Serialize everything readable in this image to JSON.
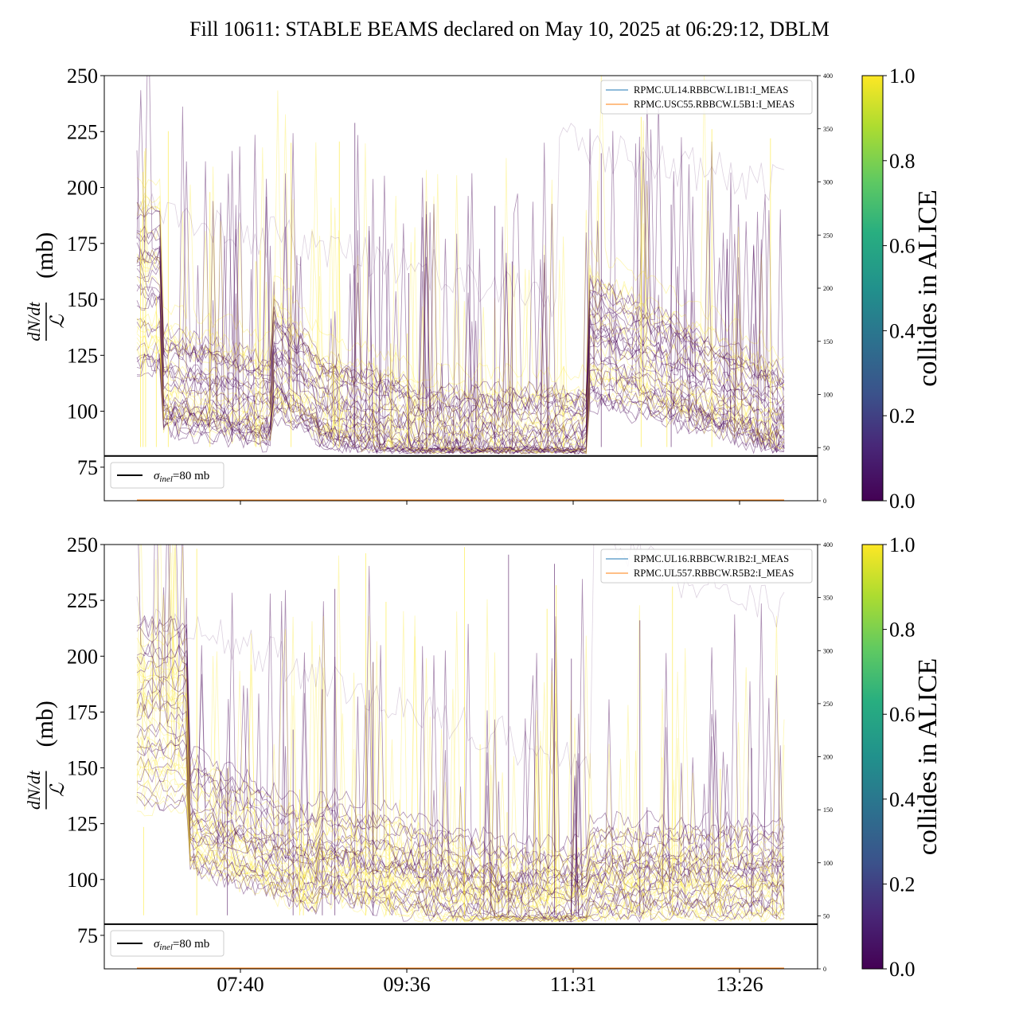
{
  "chart_data": {
    "title": "Fill 10611: STABLE BEAMS declared on May 10, 2025 at 06:29:12, DBLM",
    "type": "line",
    "x_tick_labels": [
      "07:40",
      "09:36",
      "11:31",
      "13:26"
    ],
    "colors": {
      "viridis_start": "#440154",
      "viridis_mid": "#21918c",
      "viridis_end": "#fde725",
      "legend_blue": "#1f77b4",
      "legend_orange": "#ff7f0e",
      "threshold_line": "#000000"
    },
    "panels": [
      {
        "ylabel_numerator": "dN/dt",
        "ylabel_denominator": "ℒ",
        "ylabel_unit": "(mb)",
        "ylim": [
          60,
          250
        ],
        "yticks": [
          75,
          100,
          125,
          150,
          175,
          200,
          225,
          250
        ],
        "y2lim": [
          0,
          400
        ],
        "y2ticks": [
          0,
          50,
          100,
          150,
          200,
          250,
          300,
          350,
          400
        ],
        "threshold": 80,
        "threshold_label_sym": "σ",
        "threshold_label_sub": "inel",
        "threshold_label_rest": "=80 mb",
        "legend_lines": [
          "RPMC.UL14.RBBCW.L1B1:I_MEAS",
          "RPMC.USC55.RBBCW.L5B1:I_MEAS"
        ],
        "colorbar_label": "collides in ALICE",
        "colorbar_ticks": [
          "0.0",
          "0.2",
          "0.4",
          "0.6",
          "0.8",
          "1.0"
        ]
      },
      {
        "ylabel_numerator": "dN/dt",
        "ylabel_denominator": "ℒ",
        "ylabel_unit": "(mb)",
        "ylim": [
          60,
          250
        ],
        "yticks": [
          75,
          100,
          125,
          150,
          175,
          200,
          225,
          250
        ],
        "y2lim": [
          0,
          400
        ],
        "y2ticks": [
          0,
          50,
          100,
          150,
          200,
          250,
          300,
          350,
          400
        ],
        "threshold": 80,
        "threshold_label_sym": "σ",
        "threshold_label_sub": "inel",
        "threshold_label_rest": "=80 mb",
        "legend_lines": [
          "RPMC.UL16.RBBCW.R1B2:I_MEAS",
          "RPMC.UL557.RBBCW.R5B2:I_MEAS"
        ],
        "colorbar_label": "collides in ALICE",
        "colorbar_ticks": [
          "0.0",
          "0.2",
          "0.4",
          "0.6",
          "0.8",
          "1.0"
        ]
      }
    ]
  }
}
